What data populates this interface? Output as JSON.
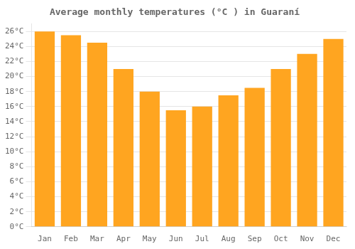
{
  "chart_data": {
    "type": "bar",
    "title": "Average monthly temperatures (°C ) in Guaraní",
    "categories": [
      "Jan",
      "Feb",
      "Mar",
      "Apr",
      "May",
      "Jun",
      "Jul",
      "Aug",
      "Sep",
      "Oct",
      "Nov",
      "Dec"
    ],
    "values": [
      26.0,
      25.5,
      24.5,
      21.0,
      18.0,
      15.5,
      16.0,
      17.5,
      18.5,
      21.0,
      23.0,
      25.0
    ],
    "color": "#FFA520",
    "ylim": [
      0,
      27
    ],
    "yticks": [
      {
        "value": 0,
        "label": "0°C"
      },
      {
        "value": 2,
        "label": "2°C"
      },
      {
        "value": 4,
        "label": "4°C"
      },
      {
        "value": 6,
        "label": "6°C"
      },
      {
        "value": 8,
        "label": "8°C"
      },
      {
        "value": 10,
        "label": "10°C"
      },
      {
        "value": 12,
        "label": "12°C"
      },
      {
        "value": 14,
        "label": "14°C"
      },
      {
        "value": 16,
        "label": "16°C"
      },
      {
        "value": 18,
        "label": "18°C"
      },
      {
        "value": 20,
        "label": "20°C"
      },
      {
        "value": 22,
        "label": "22°C"
      },
      {
        "value": 24,
        "label": "24°C"
      },
      {
        "value": 26,
        "label": "26°C"
      }
    ],
    "grid": true
  }
}
